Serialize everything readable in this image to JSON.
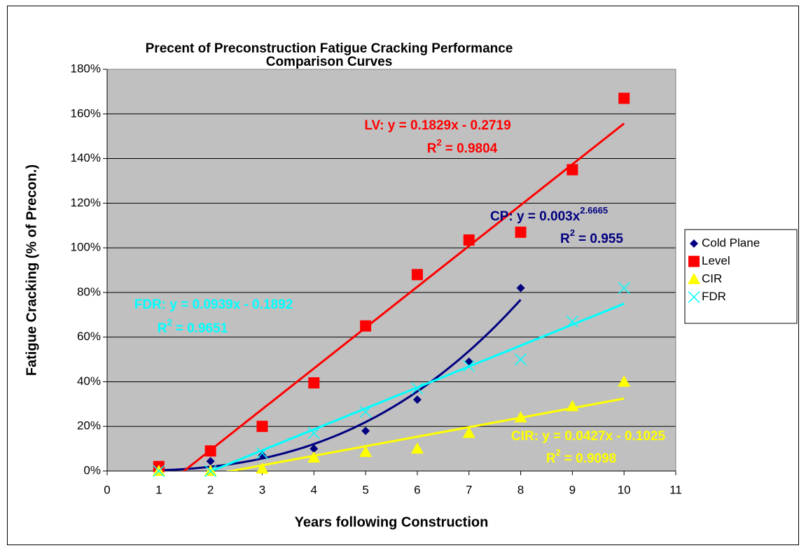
{
  "chart_data": {
    "type": "scatter",
    "title": [
      "Precent of Preconstruction Fatigue Cracking Performance",
      "Comparison Curves"
    ],
    "x_label": "Years following Construction",
    "y_label": "Fatigue Cracking (% of Precon.)",
    "xlim": [
      0,
      11
    ],
    "xticks": [
      0,
      1,
      2,
      3,
      4,
      5,
      6,
      7,
      8,
      9,
      10,
      11
    ],
    "ylim": [
      0,
      1.8
    ],
    "yticks": [
      {
        "value": 0,
        "label": "0%"
      },
      {
        "value": 0.2,
        "label": "20%"
      },
      {
        "value": 0.4,
        "label": "40%"
      },
      {
        "value": 0.6,
        "label": "60%"
      },
      {
        "value": 0.8,
        "label": "80%"
      },
      {
        "value": 1.0,
        "label": "100%"
      },
      {
        "value": 1.2,
        "label": "120%"
      },
      {
        "value": 1.4,
        "label": "140%"
      },
      {
        "value": 1.6,
        "label": "160%"
      },
      {
        "value": 1.8,
        "label": "180%"
      }
    ],
    "grid": true,
    "legend": "right",
    "series": [
      {
        "name": "Cold Plane",
        "color": "#000080",
        "marker": "diamond",
        "x": [
          1,
          2,
          3,
          4,
          5,
          6,
          7,
          8
        ],
        "values": [
          0.01,
          0.044,
          0.07,
          0.1,
          0.18,
          0.32,
          0.49,
          0.82
        ],
        "trendline": {
          "type": "power",
          "coefficients": [
            0.003,
            2.6665
          ],
          "label": "CP: y = 0.003x",
          "label_exp": "2.6665",
          "r2_label": "R",
          "r2_exp": "2",
          "r2_value": "= 0.955"
        }
      },
      {
        "name": "Level",
        "color": "#ff0000",
        "marker": "square",
        "x": [
          1,
          2,
          3,
          4,
          5,
          6,
          7,
          8,
          9,
          10
        ],
        "values": [
          0.02,
          0.09,
          0.2,
          0.395,
          0.65,
          0.88,
          1.035,
          1.07,
          1.35,
          1.67
        ],
        "trendline": {
          "type": "linear",
          "coefficients": [
            0.1829,
            -0.2719
          ],
          "label": "LV: y = 0.1829x - 0.2719",
          "r2_label": "R",
          "r2_exp": "2",
          "r2_value": "= 0.9804"
        }
      },
      {
        "name": "CIR",
        "color": "#ffff00",
        "marker": "triangle",
        "x": [
          1,
          2,
          3,
          4,
          5,
          6,
          7,
          8,
          9,
          10
        ],
        "values": [
          0,
          0,
          0.01,
          0.06,
          0.085,
          0.1,
          0.17,
          0.24,
          0.29,
          0.4
        ],
        "trendline": {
          "type": "linear",
          "coefficients": [
            0.0427,
            -0.1025
          ],
          "label": "CIR: y = 0.0427x - 0.1025",
          "r2_label": "R",
          "r2_exp": "2",
          "r2_value": "= 0.9098"
        }
      },
      {
        "name": "FDR",
        "color": "#00ffff",
        "marker": "cross",
        "x": [
          1,
          2,
          3,
          4,
          5,
          6,
          7,
          8,
          9,
          10
        ],
        "values": [
          0,
          0,
          0.08,
          0.17,
          0.265,
          0.37,
          0.47,
          0.5,
          0.67,
          0.82
        ],
        "trendline": {
          "type": "linear",
          "coefficients": [
            0.0939,
            -0.1892
          ],
          "label": "FDR: y = 0.0939x - 0.1892",
          "r2_label": "R",
          "r2_exp": "2",
          "r2_value": "= 0.9651"
        }
      }
    ]
  }
}
